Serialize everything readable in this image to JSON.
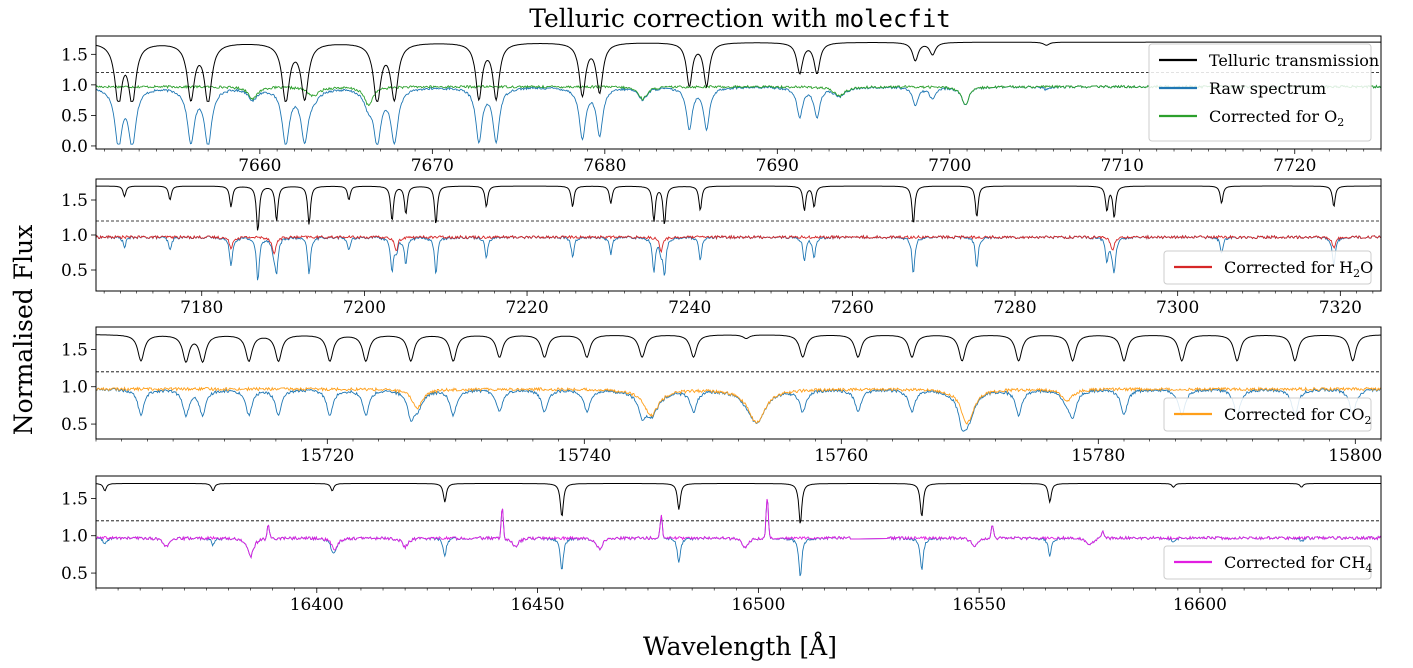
{
  "figure": {
    "title_prefix": "Telluric correction with ",
    "title_code": "molecfit",
    "ylabel": "Normalised Flux",
    "xlabel": "Wavelength [Å]"
  },
  "colors": {
    "telluric": "#000000",
    "raw": "#1f77b4",
    "o2": "#2ca02c",
    "h2o": "#d62728",
    "co2": "#ff9f1a",
    "ch4": "#e11ee1"
  },
  "chart_data": [
    {
      "type": "line",
      "panel": "O2",
      "xlim": [
        7650.5,
        7725
      ],
      "ylim": [
        -0.05,
        1.8
      ],
      "xticks": [
        7660,
        7670,
        7680,
        7690,
        7700,
        7710,
        7720
      ],
      "yticks": [
        0.0,
        0.5,
        1.0,
        1.5
      ],
      "ytick_labels": [
        "0.0",
        "0.5",
        "1.0",
        "1.5"
      ],
      "reference_line": 1.2,
      "legend": [
        "Telluric transmission",
        "Raw spectrum",
        "Corrected for O₂"
      ],
      "legend_placement": "right",
      "telluric_offset": 0.7,
      "lines": [
        {
          "x": 7651.8,
          "depth": 0.95,
          "width": 0.25
        },
        {
          "x": 7652.6,
          "depth": 0.95,
          "width": 0.25
        },
        {
          "x": 7656.0,
          "depth": 0.9,
          "width": 0.25
        },
        {
          "x": 7657.0,
          "depth": 0.95,
          "width": 0.25
        },
        {
          "x": 7661.5,
          "depth": 0.95,
          "width": 0.25
        },
        {
          "x": 7662.6,
          "depth": 0.9,
          "width": 0.25
        },
        {
          "x": 7666.8,
          "depth": 0.95,
          "width": 0.25
        },
        {
          "x": 7667.8,
          "depth": 0.9,
          "width": 0.25
        },
        {
          "x": 7672.7,
          "depth": 0.9,
          "width": 0.22
        },
        {
          "x": 7673.7,
          "depth": 0.9,
          "width": 0.22
        },
        {
          "x": 7678.7,
          "depth": 0.85,
          "width": 0.22
        },
        {
          "x": 7679.7,
          "depth": 0.8,
          "width": 0.22
        },
        {
          "x": 7684.9,
          "depth": 0.7,
          "width": 0.2
        },
        {
          "x": 7685.9,
          "depth": 0.7,
          "width": 0.2
        },
        {
          "x": 7691.3,
          "depth": 0.5,
          "width": 0.2
        },
        {
          "x": 7692.3,
          "depth": 0.5,
          "width": 0.2
        },
        {
          "x": 7698.0,
          "depth": 0.3,
          "width": 0.2
        },
        {
          "x": 7699.0,
          "depth": 0.2,
          "width": 0.2
        },
        {
          "x": 7705.6,
          "depth": 0.05,
          "width": 0.2
        }
      ],
      "residual_lines": [
        {
          "x": 7659.6,
          "depth": 0.2,
          "width": 0.3
        },
        {
          "x": 7663.1,
          "depth": 0.15,
          "width": 0.4
        },
        {
          "x": 7666.3,
          "depth": 0.3,
          "width": 0.3
        },
        {
          "x": 7682.2,
          "depth": 0.2,
          "width": 0.3
        },
        {
          "x": 7693.6,
          "depth": 0.15,
          "width": 0.4
        },
        {
          "x": 7700.9,
          "depth": 0.3,
          "width": 0.25
        }
      ],
      "corrected_name": "Corrected for O₂",
      "corrected_color_key": "o2"
    },
    {
      "type": "line",
      "panel": "H2O",
      "xlim": [
        7167,
        7325
      ],
      "ylim": [
        0.2,
        1.8
      ],
      "xticks": [
        7180,
        7200,
        7220,
        7240,
        7260,
        7280,
        7300,
        7320
      ],
      "yticks": [
        0.5,
        1.0,
        1.5
      ],
      "ytick_labels": [
        "0.5",
        "1.0",
        "1.5"
      ],
      "reference_line": 1.2,
      "legend": [
        "Corrected for H₂O"
      ],
      "legend_placement": "lower right",
      "telluric_offset": 0.7,
      "lines": [
        {
          "x": 7170.5,
          "depth": 0.15,
          "width": 0.2
        },
        {
          "x": 7176.1,
          "depth": 0.2,
          "width": 0.2
        },
        {
          "x": 7183.6,
          "depth": 0.3,
          "width": 0.2
        },
        {
          "x": 7186.9,
          "depth": 0.65,
          "width": 0.2
        },
        {
          "x": 7189.2,
          "depth": 0.5,
          "width": 0.2
        },
        {
          "x": 7193.2,
          "depth": 0.55,
          "width": 0.2
        },
        {
          "x": 7198.1,
          "depth": 0.2,
          "width": 0.2
        },
        {
          "x": 7203.4,
          "depth": 0.5,
          "width": 0.2
        },
        {
          "x": 7205.1,
          "depth": 0.4,
          "width": 0.2
        },
        {
          "x": 7208.8,
          "depth": 0.55,
          "width": 0.2
        },
        {
          "x": 7215.0,
          "depth": 0.3,
          "width": 0.2
        },
        {
          "x": 7225.6,
          "depth": 0.3,
          "width": 0.2
        },
        {
          "x": 7230.3,
          "depth": 0.25,
          "width": 0.2
        },
        {
          "x": 7235.6,
          "depth": 0.5,
          "width": 0.2
        },
        {
          "x": 7236.9,
          "depth": 0.55,
          "width": 0.2
        },
        {
          "x": 7241.3,
          "depth": 0.35,
          "width": 0.2
        },
        {
          "x": 7254.1,
          "depth": 0.35,
          "width": 0.2
        },
        {
          "x": 7255.3,
          "depth": 0.3,
          "width": 0.2
        },
        {
          "x": 7267.5,
          "depth": 0.55,
          "width": 0.2
        },
        {
          "x": 7275.3,
          "depth": 0.45,
          "width": 0.2
        },
        {
          "x": 7291.3,
          "depth": 0.35,
          "width": 0.2
        },
        {
          "x": 7292.2,
          "depth": 0.45,
          "width": 0.2
        },
        {
          "x": 7305.4,
          "depth": 0.25,
          "width": 0.2
        },
        {
          "x": 7319.2,
          "depth": 0.3,
          "width": 0.2
        }
      ],
      "residual_lines": [
        {
          "x": 7183.6,
          "depth": 0.15,
          "width": 0.25
        },
        {
          "x": 7188.9,
          "depth": 0.25,
          "width": 0.25
        },
        {
          "x": 7203.9,
          "depth": 0.2,
          "width": 0.25
        },
        {
          "x": 7236.5,
          "depth": 0.2,
          "width": 0.25
        },
        {
          "x": 7292.0,
          "depth": 0.2,
          "width": 0.25
        },
        {
          "x": 7319.2,
          "depth": 0.15,
          "width": 0.25
        }
      ],
      "corrected_name": "Corrected for H₂O",
      "corrected_color_key": "h2o"
    },
    {
      "type": "line",
      "panel": "CO2",
      "xlim": [
        15702,
        15802
      ],
      "ylim": [
        0.3,
        1.8
      ],
      "xticks": [
        15720,
        15740,
        15760,
        15780,
        15800
      ],
      "yticks": [
        0.5,
        1.0,
        1.5
      ],
      "ytick_labels": [
        "0.5",
        "1.0",
        "1.5"
      ],
      "reference_line": 1.2,
      "legend": [
        "Corrected for CO₂"
      ],
      "legend_placement": "lower right",
      "telluric_offset": 0.7,
      "lines": [
        {
          "x": 15705.5,
          "depth": 0.35,
          "width": 0.3
        },
        {
          "x": 15709.0,
          "depth": 0.35,
          "width": 0.3
        },
        {
          "x": 15710.3,
          "depth": 0.35,
          "width": 0.3
        },
        {
          "x": 15713.9,
          "depth": 0.35,
          "width": 0.3
        },
        {
          "x": 15716.2,
          "depth": 0.35,
          "width": 0.3
        },
        {
          "x": 15720.2,
          "depth": 0.35,
          "width": 0.3
        },
        {
          "x": 15723.0,
          "depth": 0.35,
          "width": 0.3
        },
        {
          "x": 15726.5,
          "depth": 0.35,
          "width": 0.3
        },
        {
          "x": 15729.8,
          "depth": 0.35,
          "width": 0.3
        },
        {
          "x": 15733.4,
          "depth": 0.3,
          "width": 0.3
        },
        {
          "x": 15736.9,
          "depth": 0.3,
          "width": 0.3
        },
        {
          "x": 15740.2,
          "depth": 0.3,
          "width": 0.3
        },
        {
          "x": 15744.5,
          "depth": 0.3,
          "width": 0.3
        },
        {
          "x": 15748.5,
          "depth": 0.3,
          "width": 0.3
        },
        {
          "x": 15752.6,
          "depth": 0.05,
          "width": 0.3
        },
        {
          "x": 15757.0,
          "depth": 0.3,
          "width": 0.3
        },
        {
          "x": 15761.3,
          "depth": 0.3,
          "width": 0.3
        },
        {
          "x": 15765.5,
          "depth": 0.3,
          "width": 0.3
        },
        {
          "x": 15769.4,
          "depth": 0.35,
          "width": 0.3
        },
        {
          "x": 15773.8,
          "depth": 0.35,
          "width": 0.3
        },
        {
          "x": 15778.0,
          "depth": 0.35,
          "width": 0.3
        },
        {
          "x": 15782.0,
          "depth": 0.35,
          "width": 0.3
        },
        {
          "x": 15786.5,
          "depth": 0.35,
          "width": 0.3
        },
        {
          "x": 15790.8,
          "depth": 0.35,
          "width": 0.3
        },
        {
          "x": 15795.3,
          "depth": 0.35,
          "width": 0.3
        },
        {
          "x": 15799.8,
          "depth": 0.35,
          "width": 0.3
        }
      ],
      "residual_lines": [
        {
          "x": 15727.0,
          "depth": 0.25,
          "width": 0.5
        },
        {
          "x": 15745.2,
          "depth": 0.35,
          "width": 0.7
        },
        {
          "x": 15753.4,
          "depth": 0.45,
          "width": 0.8
        },
        {
          "x": 15769.8,
          "depth": 0.45,
          "width": 0.6
        },
        {
          "x": 15777.6,
          "depth": 0.15,
          "width": 0.5
        }
      ],
      "corrected_name": "Corrected for CO₂",
      "corrected_color_key": "co2"
    },
    {
      "type": "line",
      "panel": "CH4",
      "xlim": [
        16350,
        16641
      ],
      "ylim": [
        0.3,
        1.8
      ],
      "xticks": [
        16400,
        16450,
        16500,
        16550,
        16600
      ],
      "yticks": [
        0.5,
        1.0,
        1.5
      ],
      "ytick_labels": [
        "0.5",
        "1.0",
        "1.5"
      ],
      "reference_line": 1.2,
      "legend": [
        "Corrected for CH₄"
      ],
      "legend_placement": "lower right",
      "telluric_offset": 0.7,
      "lines": [
        {
          "x": 16352.0,
          "depth": 0.1,
          "width": 0.4
        },
        {
          "x": 16376.5,
          "depth": 0.1,
          "width": 0.4
        },
        {
          "x": 16403.5,
          "depth": 0.1,
          "width": 0.4
        },
        {
          "x": 16429.0,
          "depth": 0.25,
          "width": 0.4
        },
        {
          "x": 16455.5,
          "depth": 0.45,
          "width": 0.4
        },
        {
          "x": 16482.0,
          "depth": 0.35,
          "width": 0.4
        },
        {
          "x": 16509.5,
          "depth": 0.55,
          "width": 0.4
        },
        {
          "x": 16537.0,
          "depth": 0.45,
          "width": 0.4
        },
        {
          "x": 16566.0,
          "depth": 0.25,
          "width": 0.4
        },
        {
          "x": 16594.0,
          "depth": 0.05,
          "width": 0.4
        },
        {
          "x": 16623.0,
          "depth": 0.05,
          "width": 0.4
        }
      ],
      "residual_lines": [
        {
          "x": 16366.0,
          "depth": 0.12,
          "width": 0.8
        },
        {
          "x": 16385.0,
          "depth": 0.25,
          "width": 0.8
        },
        {
          "x": 16404.0,
          "depth": 0.15,
          "width": 0.8
        },
        {
          "x": 16420.0,
          "depth": 0.12,
          "width": 0.8
        },
        {
          "x": 16445.0,
          "depth": 0.12,
          "width": 0.8
        },
        {
          "x": 16464.0,
          "depth": 0.15,
          "width": 0.8
        },
        {
          "x": 16497.0,
          "depth": 0.12,
          "width": 0.8
        },
        {
          "x": 16549.0,
          "depth": 0.12,
          "width": 0.8
        },
        {
          "x": 16575.0,
          "depth": 0.1,
          "width": 0.8
        }
      ],
      "spikes": [
        {
          "x": 16389.0,
          "height": 0.2
        },
        {
          "x": 16442.0,
          "height": 0.4
        },
        {
          "x": 16478.0,
          "height": 0.3
        },
        {
          "x": 16502.0,
          "height": 0.55
        },
        {
          "x": 16553.0,
          "height": 0.18
        },
        {
          "x": 16578.0,
          "height": 0.1
        }
      ],
      "gap": [
        16521.0,
        16529.0
      ],
      "corrected_name": "Corrected for CH₄",
      "corrected_color_key": "ch4"
    }
  ]
}
